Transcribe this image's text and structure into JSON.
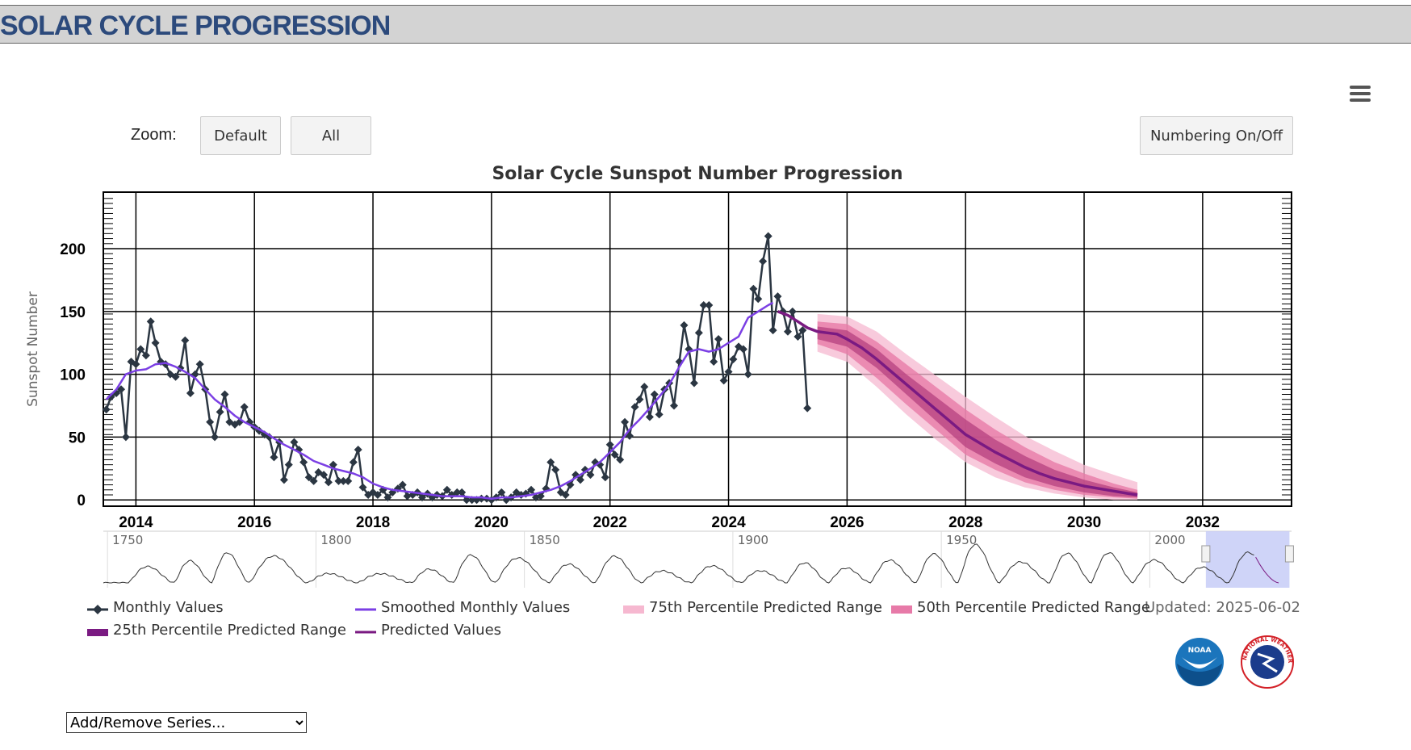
{
  "banner": {
    "title": "SOLAR CYCLE PROGRESSION"
  },
  "controls": {
    "zoom_label": "Zoom:",
    "default_label": "Default",
    "all_label": "All",
    "numbering_label": "Numbering On/Off",
    "series_select": "Add/Remove Series...",
    "menu_icon": "hamburger-menu-icon"
  },
  "updated": "Updated: 2025-06-02",
  "colors": {
    "monthly": "#2b3642",
    "smoothed": "#7b3fe4",
    "predicted": "#7a1a82",
    "p25": "#b5407f",
    "p50": "#e77aa8",
    "p75": "#f6b8d0",
    "banner_text": "#2c4a7c",
    "navigator_window": "#c7cdf7"
  },
  "chart_data": {
    "type": "line",
    "title": "Solar Cycle Sunspot Number Progression",
    "ylabel": "Sunspot Number",
    "xlabel": "",
    "xlim": [
      2013.45,
      2033.5
    ],
    "ylim": [
      -5,
      245
    ],
    "x_ticks": [
      2014,
      2016,
      2018,
      2020,
      2022,
      2024,
      2026,
      2028,
      2030,
      2032
    ],
    "y_ticks": [
      0,
      50,
      100,
      150,
      200
    ],
    "grid": true,
    "legend_placement": "bottom",
    "series": [
      {
        "name": "Monthly Values",
        "color_key": "monthly",
        "marker": "diamond",
        "x": [
          2013.5,
          2013.58,
          2013.67,
          2013.75,
          2013.83,
          2013.92,
          2014.0,
          2014.08,
          2014.17,
          2014.25,
          2014.33,
          2014.42,
          2014.5,
          2014.58,
          2014.67,
          2014.75,
          2014.83,
          2014.92,
          2015.0,
          2015.08,
          2015.17,
          2015.25,
          2015.33,
          2015.42,
          2015.5,
          2015.58,
          2015.67,
          2015.75,
          2015.83,
          2015.92,
          2016.0,
          2016.08,
          2016.17,
          2016.25,
          2016.33,
          2016.42,
          2016.5,
          2016.58,
          2016.67,
          2016.75,
          2016.83,
          2016.92,
          2017.0,
          2017.08,
          2017.17,
          2017.25,
          2017.33,
          2017.42,
          2017.5,
          2017.58,
          2017.67,
          2017.75,
          2017.83,
          2017.92,
          2018.0,
          2018.08,
          2018.17,
          2018.25,
          2018.33,
          2018.42,
          2018.5,
          2018.58,
          2018.67,
          2018.75,
          2018.83,
          2018.92,
          2019.0,
          2019.08,
          2019.17,
          2019.25,
          2019.33,
          2019.42,
          2019.5,
          2019.58,
          2019.67,
          2019.75,
          2019.83,
          2019.92,
          2020.0,
          2020.08,
          2020.17,
          2020.25,
          2020.33,
          2020.42,
          2020.5,
          2020.58,
          2020.67,
          2020.75,
          2020.83,
          2020.92,
          2021.0,
          2021.08,
          2021.17,
          2021.25,
          2021.33,
          2021.42,
          2021.5,
          2021.58,
          2021.67,
          2021.75,
          2021.83,
          2021.92,
          2022.0,
          2022.08,
          2022.17,
          2022.25,
          2022.33,
          2022.42,
          2022.5,
          2022.58,
          2022.67,
          2022.75,
          2022.83,
          2022.92,
          2023.0,
          2023.08,
          2023.17,
          2023.25,
          2023.33,
          2023.42,
          2023.5,
          2023.58,
          2023.67,
          2023.75,
          2023.83,
          2023.92,
          2024.0,
          2024.08,
          2024.17,
          2024.25,
          2024.33,
          2024.42,
          2024.5,
          2024.58,
          2024.67,
          2024.75,
          2024.83,
          2024.92,
          2025.0,
          2025.08,
          2025.17,
          2025.25,
          2025.33
        ],
        "values": [
          72,
          82,
          85,
          88,
          50,
          110,
          108,
          120,
          115,
          142,
          125,
          110,
          108,
          100,
          98,
          105,
          127,
          85,
          100,
          108,
          88,
          62,
          50,
          70,
          84,
          62,
          60,
          62,
          74,
          62,
          58,
          55,
          52,
          50,
          34,
          46,
          16,
          28,
          46,
          40,
          30,
          18,
          15,
          22,
          20,
          14,
          28,
          15,
          15,
          15,
          30,
          40,
          10,
          4,
          6,
          4,
          8,
          2,
          6,
          9,
          12,
          3,
          4,
          6,
          2,
          5,
          2,
          4,
          3,
          8,
          4,
          6,
          6,
          0,
          0,
          0,
          1,
          1,
          0,
          2,
          6,
          0,
          2,
          6,
          4,
          5,
          8,
          2,
          3,
          9,
          30,
          24,
          6,
          4,
          12,
          20,
          16,
          24,
          20,
          30,
          28,
          18,
          44,
          36,
          32,
          62,
          51,
          74,
          80,
          90,
          66,
          84,
          68,
          88,
          93,
          75,
          110,
          139,
          120,
          93,
          133,
          155,
          155,
          110,
          128,
          95,
          102,
          112,
          122,
          120,
          100,
          168,
          160,
          190,
          210,
          135,
          162,
          150,
          134,
          150,
          130,
          135,
          73
        ]
      },
      {
        "name": "Smoothed Monthly Values",
        "color_key": "smoothed",
        "x": [
          2013.5,
          2013.67,
          2013.83,
          2014.0,
          2014.17,
          2014.33,
          2014.5,
          2014.67,
          2014.83,
          2015.0,
          2015.17,
          2015.33,
          2015.5,
          2015.67,
          2015.83,
          2016.0,
          2016.17,
          2016.33,
          2016.5,
          2016.67,
          2016.83,
          2017.0,
          2017.17,
          2017.33,
          2017.5,
          2017.67,
          2017.83,
          2018.0,
          2018.17,
          2018.33,
          2018.5,
          2018.67,
          2018.83,
          2019.0,
          2019.17,
          2019.33,
          2019.5,
          2019.67,
          2019.83,
          2020.0,
          2020.17,
          2020.33,
          2020.5,
          2020.67,
          2020.83,
          2021.0,
          2021.17,
          2021.33,
          2021.5,
          2021.67,
          2021.83,
          2022.0,
          2022.17,
          2022.33,
          2022.5,
          2022.67,
          2022.83,
          2023.0,
          2023.17,
          2023.33,
          2023.5,
          2023.67,
          2023.83,
          2024.0,
          2024.17,
          2024.33,
          2024.5,
          2024.67,
          2024.75
        ],
        "values": [
          80,
          88,
          100,
          103,
          104,
          108,
          109,
          106,
          102,
          97,
          88,
          80,
          74,
          67,
          62,
          58,
          54,
          49,
          44,
          40,
          36,
          31,
          28,
          25,
          23,
          21,
          18,
          13,
          10,
          8,
          7,
          6,
          5,
          4,
          3,
          3,
          3,
          2,
          2,
          1,
          2,
          2,
          3,
          4,
          6,
          8,
          11,
          15,
          20,
          25,
          30,
          38,
          46,
          56,
          64,
          73,
          82,
          92,
          106,
          118,
          120,
          118,
          120,
          125,
          130,
          145,
          150,
          155,
          157
        ]
      },
      {
        "name": "Predicted Values",
        "color_key": "predicted",
        "x": [
          2024.83,
          2025.0,
          2025.17,
          2025.33,
          2025.5,
          2025.67,
          2025.83,
          2026.0,
          2026.25,
          2026.5,
          2026.75,
          2027.0,
          2027.25,
          2027.5,
          2027.75,
          2028.0,
          2028.25,
          2028.5,
          2028.75,
          2029.0,
          2029.25,
          2029.5,
          2029.75,
          2030.0,
          2030.25,
          2030.5,
          2030.75,
          2030.9
        ],
        "values": [
          150,
          147,
          142,
          137,
          134,
          133,
          132,
          128,
          121,
          112,
          102,
          92,
          82,
          72,
          62,
          52,
          45,
          38,
          32,
          26,
          21,
          17,
          14,
          11,
          9,
          7,
          5,
          4
        ]
      },
      {
        "name": "25th Percentile Predicted Range",
        "color_key": "p25",
        "x": [
          2025.5,
          2026.0,
          2026.5,
          2027.0,
          2027.5,
          2028.0,
          2028.5,
          2029.0,
          2029.5,
          2030.0,
          2030.5,
          2030.9
        ],
        "lower": [
          128,
          122,
          105,
          84,
          63,
          42,
          29,
          18,
          11,
          6,
          3,
          2
        ],
        "upper": [
          138,
          135,
          120,
          100,
          82,
          64,
          48,
          35,
          24,
          16,
          10,
          6
        ]
      },
      {
        "name": "50th Percentile Predicted Range",
        "color_key": "p50",
        "x": [
          2025.5,
          2026.0,
          2026.5,
          2027.0,
          2027.5,
          2028.0,
          2028.5,
          2029.0,
          2029.5,
          2030.0,
          2030.5,
          2030.9
        ],
        "lower": [
          124,
          116,
          97,
          76,
          56,
          36,
          24,
          14,
          8,
          4,
          2,
          1
        ],
        "upper": [
          142,
          140,
          126,
          108,
          90,
          72,
          56,
          42,
          30,
          21,
          13,
          8
        ]
      },
      {
        "name": "75th Percentile Predicted Range",
        "color_key": "p75",
        "x": [
          2025.5,
          2026.0,
          2026.5,
          2027.0,
          2027.5,
          2028.0,
          2028.5,
          2029.0,
          2029.5,
          2030.0,
          2030.5,
          2030.9
        ],
        "lower": [
          118,
          110,
          90,
          68,
          48,
          30,
          18,
          10,
          5,
          2,
          0,
          0
        ],
        "upper": [
          148,
          146,
          134,
          116,
          99,
          82,
          66,
          51,
          39,
          28,
          20,
          14
        ]
      }
    ],
    "navigator": {
      "x_labels": [
        "1750",
        "1800",
        "1850",
        "1900",
        "1950",
        "2000"
      ],
      "cycle_starts": [
        1755,
        1766,
        1775,
        1784,
        1798,
        1810,
        1823,
        1833,
        1843,
        1856,
        1867,
        1878,
        1890,
        1902,
        1913,
        1923,
        1933,
        1944,
        1954,
        1964,
        1976,
        1986,
        1996,
        2008,
        2019
      ],
      "cycle_peaks": [
        86,
        116,
        158,
        141,
        49,
        48,
        72,
        146,
        131,
        98,
        140,
        63,
        89,
        64,
        105,
        78,
        119,
        152,
        201,
        110,
        155,
        158,
        120,
        82,
        160
      ],
      "xlim": [
        1749,
        2034
      ],
      "window": [
        2013.45,
        2033.5
      ]
    }
  },
  "legend_items": [
    {
      "label": "Monthly Values",
      "key": "monthly",
      "style": "line-diamond"
    },
    {
      "label": "Smoothed Monthly Values",
      "key": "smoothed",
      "style": "line"
    },
    {
      "label": "75th Percentile Predicted Range",
      "key": "p75",
      "style": "band"
    },
    {
      "label": "50th Percentile Predicted Range",
      "key": "p50",
      "style": "band"
    },
    {
      "label": "25th Percentile Predicted Range",
      "key": "p25",
      "style": "band-dark"
    },
    {
      "label": "Predicted Values",
      "key": "predicted",
      "style": "line"
    }
  ],
  "logos": {
    "noaa": "NOAA",
    "nws": "NATIONAL WEATHER SERVICE"
  }
}
